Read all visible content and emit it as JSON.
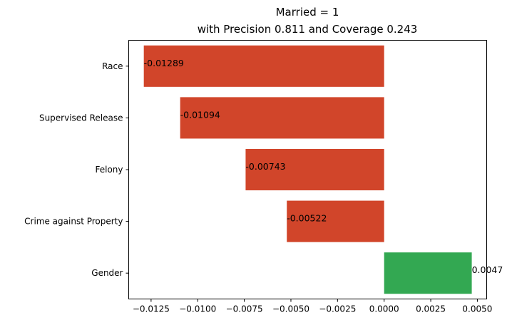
{
  "chart_data": {
    "type": "bar",
    "orientation": "horizontal",
    "title_line1": "Married = 1",
    "title_line2": "with Precision 0.811 and Coverage 0.243",
    "categories": [
      "Race",
      "Supervised Release",
      "Felony",
      "Crime against Property",
      "Gender"
    ],
    "values": [
      -0.01289,
      -0.01094,
      -0.00743,
      -0.00522,
      0.0047
    ],
    "value_labels": [
      "-0.01289",
      "-0.01094",
      "-0.00743",
      "-0.00522",
      "0.0047"
    ],
    "bar_colors": [
      "#d1452a",
      "#d1452a",
      "#d1452a",
      "#d1452a",
      "#33a852"
    ],
    "xlim": [
      -0.0137,
      0.0055
    ],
    "xticks": [
      -0.0125,
      -0.01,
      -0.0075,
      -0.005,
      -0.0025,
      0.0,
      0.0025,
      0.005
    ],
    "xtick_labels": [
      "−0.0125",
      "−0.0100",
      "−0.0075",
      "−0.0050",
      "−0.0025",
      "0.0000",
      "0.0025",
      "0.0050"
    ],
    "grid": false,
    "xlabel": "",
    "ylabel": ""
  }
}
